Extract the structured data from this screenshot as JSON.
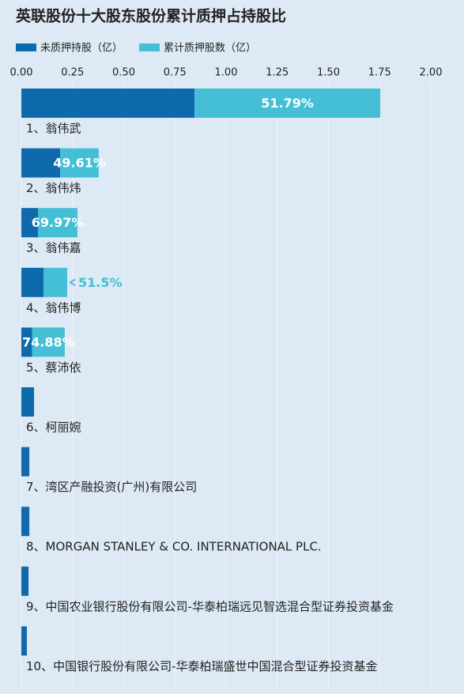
{
  "chart_data": {
    "type": "stacked_barh",
    "title": "英联股份十大股东股份累计质押占持股比",
    "categories": [
      "1、翁伟武",
      "2、翁伟炜",
      "3、翁伟嘉",
      "4、翁伟博",
      "5、蔡沛依",
      "6、柯丽婉",
      "7、湾区产融投资(广州)有限公司",
      "8、MORGAN STANLEY & CO. INTERNATIONAL PLC.",
      "9、中国农业银行股份有限公司-华泰柏瑞远见智选混合型证券投资基金",
      "10、中国银行股份有限公司-华泰柏瑞盛世中国混合型证券投资基金"
    ],
    "series": [
      {
        "name": "未质押持股（亿）",
        "color": "#0e6aaa",
        "values": [
          0.846,
          0.19,
          0.082,
          0.109,
          0.053,
          0.062,
          0.039,
          0.039,
          0.035,
          0.027
        ]
      },
      {
        "name": "累计质押股数（亿）",
        "color": "#45bfd6",
        "values": [
          0.907,
          0.188,
          0.192,
          0.115,
          0.159,
          null,
          null,
          null,
          null,
          null
        ]
      }
    ],
    "ratio_labels": [
      "51.79%",
      "49.61%",
      "69.97%",
      "51.5%",
      "74.88%",
      null,
      null,
      null,
      null,
      null
    ],
    "xlim": [
      0,
      2
    ],
    "xticks": [
      {
        "value": 0,
        "label": "0.00"
      },
      {
        "value": 0.25,
        "label": "0.25"
      },
      {
        "value": 0.5,
        "label": "0.50"
      },
      {
        "value": 0.75,
        "label": "0.75"
      },
      {
        "value": 1,
        "label": "1.00"
      },
      {
        "value": 1.25,
        "label": "1.25"
      },
      {
        "value": 1.5,
        "label": "1.50"
      },
      {
        "value": 1.75,
        "label": "1.75"
      },
      {
        "value": 2,
        "label": "2.00"
      }
    ],
    "grid": true,
    "legend": "top-left"
  }
}
